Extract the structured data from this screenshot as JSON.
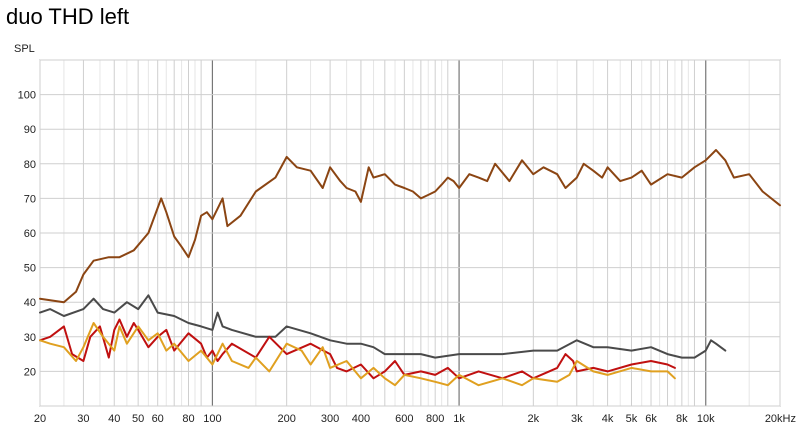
{
  "chart_data": {
    "type": "line",
    "title": "duo THD left",
    "ylabel": "SPL",
    "xlabel": "",
    "x_scale": "log",
    "xlim": [
      20,
      20000
    ],
    "ylim": [
      10,
      110
    ],
    "grid": true,
    "x_tick_labels": [
      {
        "v": 20,
        "t": "20"
      },
      {
        "v": 30,
        "t": "30"
      },
      {
        "v": 40,
        "t": "40"
      },
      {
        "v": 50,
        "t": "50"
      },
      {
        "v": 60,
        "t": "60"
      },
      {
        "v": 80,
        "t": "80"
      },
      {
        "v": 100,
        "t": "100"
      },
      {
        "v": 200,
        "t": "200"
      },
      {
        "v": 300,
        "t": "300"
      },
      {
        "v": 400,
        "t": "400"
      },
      {
        "v": 600,
        "t": "600"
      },
      {
        "v": 800,
        "t": "800"
      },
      {
        "v": 1000,
        "t": "1k"
      },
      {
        "v": 2000,
        "t": "2k"
      },
      {
        "v": 3000,
        "t": "3k"
      },
      {
        "v": 4000,
        "t": "4k"
      },
      {
        "v": 5000,
        "t": "5k"
      },
      {
        "v": 6000,
        "t": "6k"
      },
      {
        "v": 8000,
        "t": "8k"
      },
      {
        "v": 10000,
        "t": "10k"
      },
      {
        "v": 20000,
        "t": "20kHz"
      }
    ],
    "y_ticks": [
      20,
      30,
      40,
      50,
      60,
      70,
      80,
      90,
      100
    ],
    "series": [
      {
        "color": "#8B4513",
        "points": [
          [
            20,
            41
          ],
          [
            25,
            40
          ],
          [
            28,
            43
          ],
          [
            30,
            48
          ],
          [
            33,
            52
          ],
          [
            38,
            53
          ],
          [
            42,
            53
          ],
          [
            48,
            55
          ],
          [
            55,
            60
          ],
          [
            62,
            70
          ],
          [
            65,
            66
          ],
          [
            70,
            59
          ],
          [
            75,
            56
          ],
          [
            80,
            53
          ],
          [
            85,
            58
          ],
          [
            90,
            65
          ],
          [
            95,
            66
          ],
          [
            100,
            64
          ],
          [
            110,
            70
          ],
          [
            115,
            62
          ],
          [
            130,
            65
          ],
          [
            150,
            72
          ],
          [
            180,
            76
          ],
          [
            200,
            82
          ],
          [
            220,
            79
          ],
          [
            250,
            78
          ],
          [
            280,
            73
          ],
          [
            300,
            79
          ],
          [
            330,
            75
          ],
          [
            350,
            73
          ],
          [
            380,
            72
          ],
          [
            400,
            69
          ],
          [
            430,
            79
          ],
          [
            450,
            76
          ],
          [
            500,
            77
          ],
          [
            550,
            74
          ],
          [
            600,
            73
          ],
          [
            650,
            72
          ],
          [
            700,
            70
          ],
          [
            750,
            71
          ],
          [
            800,
            72
          ],
          [
            850,
            74
          ],
          [
            900,
            76
          ],
          [
            950,
            75
          ],
          [
            1000,
            73
          ],
          [
            1100,
            77
          ],
          [
            1200,
            76
          ],
          [
            1300,
            75
          ],
          [
            1400,
            80
          ],
          [
            1600,
            75
          ],
          [
            1800,
            81
          ],
          [
            2000,
            77
          ],
          [
            2200,
            79
          ],
          [
            2500,
            77
          ],
          [
            2700,
            73
          ],
          [
            3000,
            76
          ],
          [
            3200,
            80
          ],
          [
            3500,
            78
          ],
          [
            3800,
            76
          ],
          [
            4000,
            79
          ],
          [
            4500,
            75
          ],
          [
            5000,
            76
          ],
          [
            5500,
            78
          ],
          [
            6000,
            74
          ],
          [
            7000,
            77
          ],
          [
            8000,
            76
          ],
          [
            9000,
            79
          ],
          [
            10000,
            81
          ],
          [
            11000,
            84
          ],
          [
            12000,
            81
          ],
          [
            13000,
            76
          ],
          [
            15000,
            77
          ],
          [
            17000,
            72
          ],
          [
            20000,
            68
          ]
        ]
      },
      {
        "color": "#4a4a4a",
        "points": [
          [
            20,
            37
          ],
          [
            22,
            38
          ],
          [
            25,
            36
          ],
          [
            30,
            38
          ],
          [
            33,
            41
          ],
          [
            36,
            38
          ],
          [
            40,
            37
          ],
          [
            45,
            40
          ],
          [
            50,
            38
          ],
          [
            55,
            42
          ],
          [
            60,
            37
          ],
          [
            70,
            36
          ],
          [
            80,
            34
          ],
          [
            90,
            33
          ],
          [
            100,
            32
          ],
          [
            105,
            37
          ],
          [
            110,
            33
          ],
          [
            120,
            32
          ],
          [
            150,
            30
          ],
          [
            180,
            30
          ],
          [
            200,
            33
          ],
          [
            250,
            31
          ],
          [
            300,
            29
          ],
          [
            350,
            28
          ],
          [
            400,
            28
          ],
          [
            450,
            27
          ],
          [
            500,
            25
          ],
          [
            600,
            25
          ],
          [
            700,
            25
          ],
          [
            800,
            24
          ],
          [
            1000,
            25
          ],
          [
            1200,
            25
          ],
          [
            1500,
            25
          ],
          [
            2000,
            26
          ],
          [
            2500,
            26
          ],
          [
            3000,
            29
          ],
          [
            3500,
            27
          ],
          [
            4000,
            27
          ],
          [
            5000,
            26
          ],
          [
            6000,
            27
          ],
          [
            7000,
            25
          ],
          [
            8000,
            24
          ],
          [
            9000,
            24
          ],
          [
            10000,
            26
          ],
          [
            10500,
            29
          ],
          [
            11000,
            28
          ],
          [
            12000,
            26
          ]
        ]
      },
      {
        "color": "#c01010",
        "points": [
          [
            20,
            29
          ],
          [
            22,
            30
          ],
          [
            25,
            33
          ],
          [
            27,
            25
          ],
          [
            30,
            23
          ],
          [
            32,
            30
          ],
          [
            35,
            33
          ],
          [
            38,
            24
          ],
          [
            40,
            32
          ],
          [
            42,
            35
          ],
          [
            45,
            30
          ],
          [
            48,
            34
          ],
          [
            50,
            32
          ],
          [
            55,
            27
          ],
          [
            60,
            30
          ],
          [
            65,
            32
          ],
          [
            70,
            26
          ],
          [
            80,
            31
          ],
          [
            90,
            28
          ],
          [
            95,
            24
          ],
          [
            100,
            26
          ],
          [
            105,
            23
          ],
          [
            110,
            25
          ],
          [
            120,
            28
          ],
          [
            150,
            24
          ],
          [
            170,
            30
          ],
          [
            200,
            25
          ],
          [
            250,
            28
          ],
          [
            300,
            25
          ],
          [
            320,
            21
          ],
          [
            350,
            20
          ],
          [
            400,
            22
          ],
          [
            450,
            18
          ],
          [
            500,
            20
          ],
          [
            550,
            23
          ],
          [
            600,
            19
          ],
          [
            700,
            20
          ],
          [
            800,
            19
          ],
          [
            900,
            21
          ],
          [
            1000,
            18
          ],
          [
            1200,
            20
          ],
          [
            1500,
            18
          ],
          [
            1800,
            20
          ],
          [
            2000,
            18
          ],
          [
            2500,
            21
          ],
          [
            2700,
            25
          ],
          [
            2900,
            23
          ],
          [
            3000,
            20
          ],
          [
            3500,
            21
          ],
          [
            4000,
            20
          ],
          [
            5000,
            22
          ],
          [
            6000,
            23
          ],
          [
            7000,
            22
          ],
          [
            7500,
            21
          ]
        ]
      },
      {
        "color": "#e0a020",
        "points": [
          [
            20,
            29
          ],
          [
            22,
            28
          ],
          [
            25,
            27
          ],
          [
            28,
            23
          ],
          [
            30,
            27
          ],
          [
            33,
            34
          ],
          [
            36,
            30
          ],
          [
            40,
            26
          ],
          [
            42,
            33
          ],
          [
            45,
            28
          ],
          [
            50,
            33
          ],
          [
            55,
            29
          ],
          [
            60,
            31
          ],
          [
            65,
            26
          ],
          [
            70,
            28
          ],
          [
            80,
            23
          ],
          [
            90,
            26
          ],
          [
            100,
            22
          ],
          [
            110,
            28
          ],
          [
            120,
            23
          ],
          [
            140,
            21
          ],
          [
            150,
            24
          ],
          [
            170,
            20
          ],
          [
            200,
            28
          ],
          [
            230,
            26
          ],
          [
            250,
            22
          ],
          [
            280,
            27
          ],
          [
            300,
            21
          ],
          [
            350,
            23
          ],
          [
            400,
            18
          ],
          [
            450,
            21
          ],
          [
            500,
            18
          ],
          [
            550,
            16
          ],
          [
            600,
            19
          ],
          [
            700,
            18
          ],
          [
            800,
            17
          ],
          [
            900,
            16
          ],
          [
            1000,
            19
          ],
          [
            1200,
            16
          ],
          [
            1500,
            18
          ],
          [
            1800,
            16
          ],
          [
            2000,
            18
          ],
          [
            2500,
            17
          ],
          [
            2800,
            19
          ],
          [
            3000,
            23
          ],
          [
            3500,
            20
          ],
          [
            4000,
            19
          ],
          [
            5000,
            21
          ],
          [
            6000,
            20
          ],
          [
            7000,
            20
          ],
          [
            7500,
            18
          ]
        ]
      }
    ]
  }
}
